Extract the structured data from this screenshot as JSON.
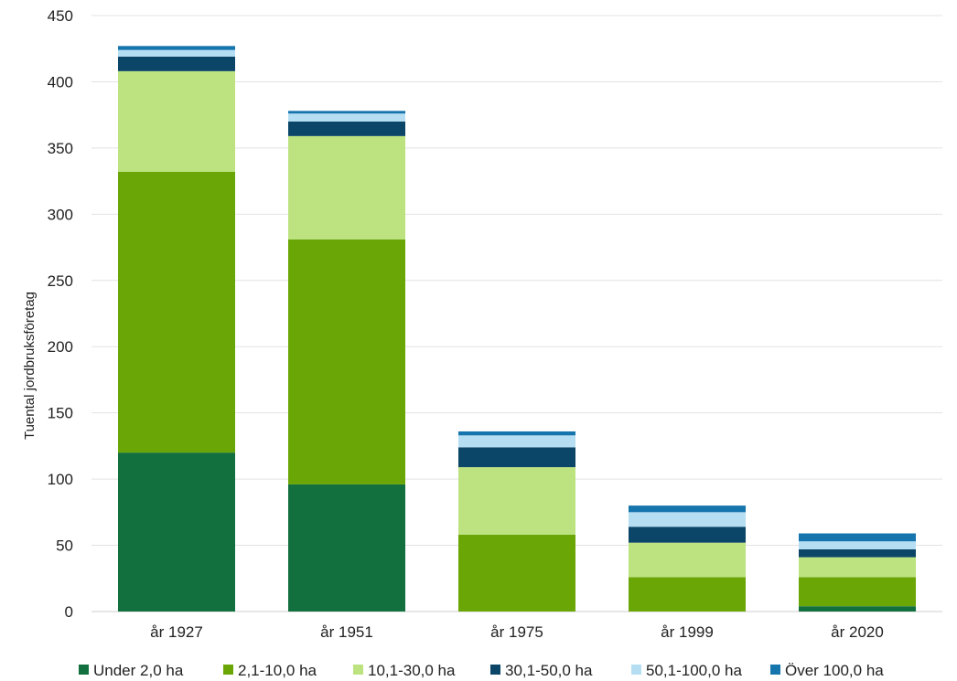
{
  "chart_data": {
    "type": "bar",
    "stacked": true,
    "title": "",
    "xlabel": "",
    "ylabel": "Tuental jordbruksföretag",
    "ylim": [
      0,
      450
    ],
    "yticks": [
      0,
      50,
      100,
      150,
      200,
      250,
      300,
      350,
      400,
      450
    ],
    "grid": true,
    "legend_position": "bottom",
    "categories": [
      "år 1927",
      "år 1951",
      "år 1975",
      "år 1999",
      "år 2020"
    ],
    "series": [
      {
        "name": "Under 2,0 ha",
        "color": "#12703f",
        "values": [
          120,
          96,
          0,
          0,
          4
        ]
      },
      {
        "name": "2,1-10,0 ha",
        "color": "#6aa605",
        "values": [
          212,
          185,
          58,
          26,
          22
        ]
      },
      {
        "name": "10,1-30,0 ha",
        "color": "#bde380",
        "values": [
          76,
          78,
          51,
          26,
          15
        ]
      },
      {
        "name": "30,1-50,0 ha",
        "color": "#0b4568",
        "values": [
          11,
          11,
          15,
          12,
          6
        ]
      },
      {
        "name": "50,1-100,0 ha",
        "color": "#b5def3",
        "values": [
          5,
          6,
          9,
          11,
          6
        ]
      },
      {
        "name": "Över 100,0 ha",
        "color": "#1675ad",
        "values": [
          3,
          2,
          3,
          5,
          6
        ]
      }
    ]
  }
}
